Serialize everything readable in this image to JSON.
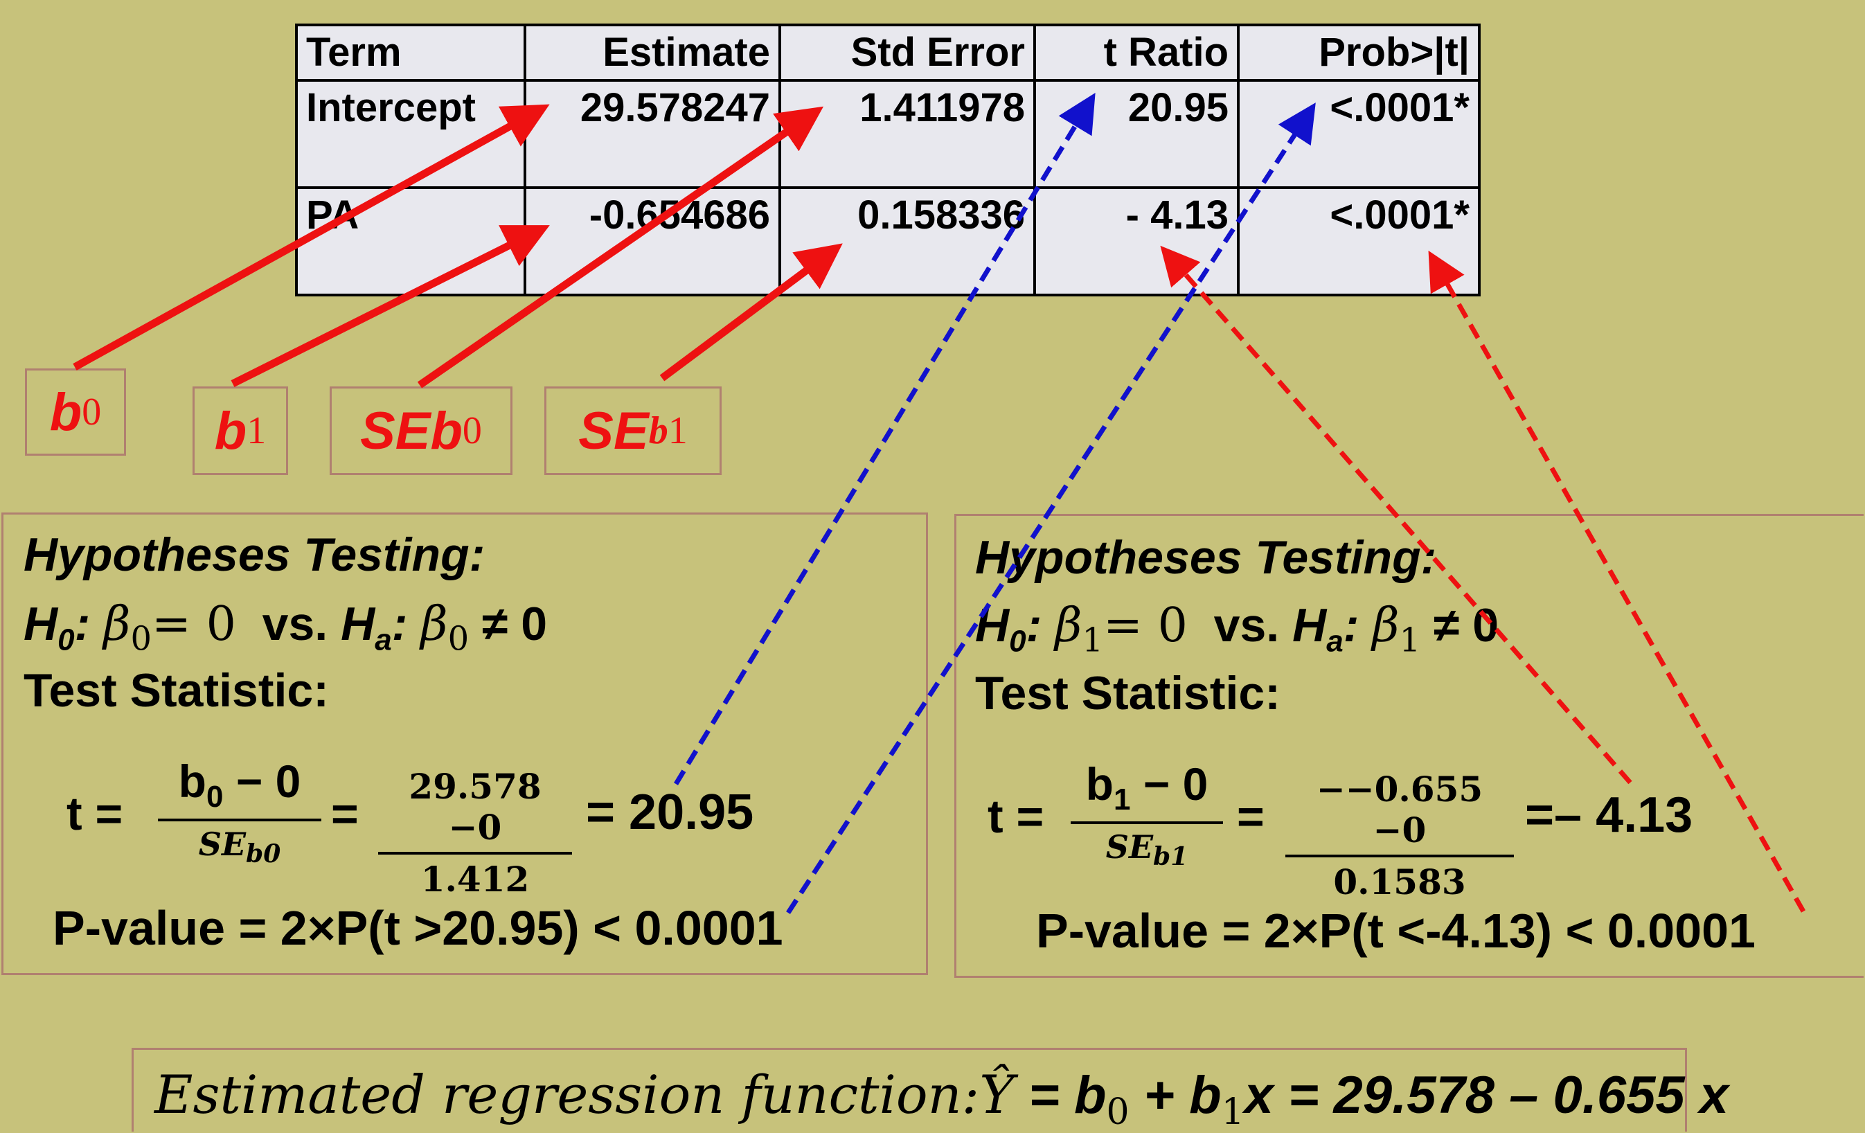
{
  "table": {
    "headers": [
      "Term",
      "Estimate",
      "Std Error",
      "t Ratio",
      "Prob>|t|"
    ],
    "rows": [
      [
        "Intercept",
        "29.578247",
        "1.411978",
        "20.95",
        "<.0001*"
      ],
      [
        "PA",
        "-0.654686",
        "0.158336",
        "- 4.13",
        "<.0001*"
      ]
    ]
  },
  "labels": {
    "b0": {
      "main": "b",
      "sub": "0"
    },
    "b1": {
      "main": "b",
      "sub": "1"
    },
    "seb0": {
      "main": "SEb",
      "sub": "0"
    },
    "seb1": {
      "main": "SE",
      "sub_b": "b",
      "sub": "1"
    }
  },
  "left_panel": {
    "title": "Hypotheses Testing:",
    "h0_prefix": "H",
    "h0_sub": "0",
    "beta": "β",
    "beta_sub": "0",
    "h0_eq": "= 0",
    "vs": "vs.",
    "ha_prefix": "H",
    "ha_sub": "a",
    "ha_neq": "≠ 0",
    "ts_label": "Test Statistic:",
    "t_eq": "t =",
    "frac1_top": "b",
    "frac1_top_sub": "0",
    "frac1_top_rest": " − 0",
    "frac1_bot": "SE",
    "frac1_bot_sub": "b0",
    "eq": "=",
    "frac2_top": "29.578 −0",
    "frac2_bot": "1.412",
    "result": "= 20.95",
    "pvalue": "P-value = 2×P(t >20.95) < 0.0001"
  },
  "right_panel": {
    "title": "Hypotheses Testing:",
    "h0_prefix": "H",
    "h0_sub": "0",
    "beta": "β",
    "beta_sub": "1",
    "h0_eq": "= 0",
    "vs": "vs.",
    "ha_prefix": "H",
    "ha_sub": "a",
    "ha_neq": "≠ 0",
    "ts_label": "Test Statistic:",
    "t_eq": "t =",
    "frac1_top": "b",
    "frac1_top_sub": "1",
    "frac1_top_rest": " − 0",
    "frac1_bot": "SE",
    "frac1_bot_sub": "b1",
    "eq": "=",
    "frac2_top": "−−0.655 −0",
    "frac2_bot": "0.1583",
    "result": "=– 4.13",
    "pvalue": "P-value = 2×P(t <-4.13) < 0.0001"
  },
  "regression_function": {
    "label": "Estimated regression function:",
    "yhat": "Ŷ",
    "rest_a": " = b",
    "sub0": "0",
    "rest_b": " + b",
    "sub1": "1",
    "rest_c": "x = 29.578 – 0.655 x"
  },
  "colors": {
    "background": "#c7c27b",
    "red": "#ee1111",
    "blue": "#1111cc",
    "table_bg": "#e8e8ee"
  }
}
